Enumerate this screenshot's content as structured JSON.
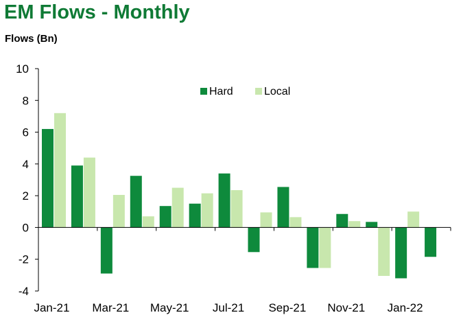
{
  "title": "EM Flows - Monthly",
  "chart_data": {
    "type": "bar",
    "ylabel": "Flows (Bn)",
    "xlabel": "",
    "ylim": [
      -4,
      10
    ],
    "yticks": [
      -4,
      -2,
      0,
      2,
      4,
      6,
      8,
      10
    ],
    "categories": [
      "Jan-21",
      "Feb-21",
      "Mar-21",
      "Apr-21",
      "May-21",
      "Jun-21",
      "Jul-21",
      "Aug-21",
      "Sep-21",
      "Oct-21",
      "Nov-21",
      "Dec-21",
      "Jan-22",
      "Feb-22"
    ],
    "xtick_labels": [
      "Jan-21",
      "Mar-21",
      "May-21",
      "Jul-21",
      "Sep-21",
      "Nov-21",
      "Jan-22"
    ],
    "series": [
      {
        "name": "Hard",
        "color": "#0e8a3c",
        "values": [
          6.2,
          3.9,
          -2.9,
          3.25,
          1.35,
          1.5,
          3.4,
          -1.55,
          2.55,
          -2.55,
          0.85,
          0.35,
          -3.2,
          -1.85
        ]
      },
      {
        "name": "Local",
        "color": "#c8e7ad",
        "values": [
          7.2,
          4.4,
          2.05,
          0.7,
          2.5,
          2.15,
          2.35,
          0.95,
          0.65,
          -2.55,
          0.4,
          -3.05,
          1.0,
          0
        ]
      }
    ],
    "legend": "top-center",
    "grid": false
  }
}
